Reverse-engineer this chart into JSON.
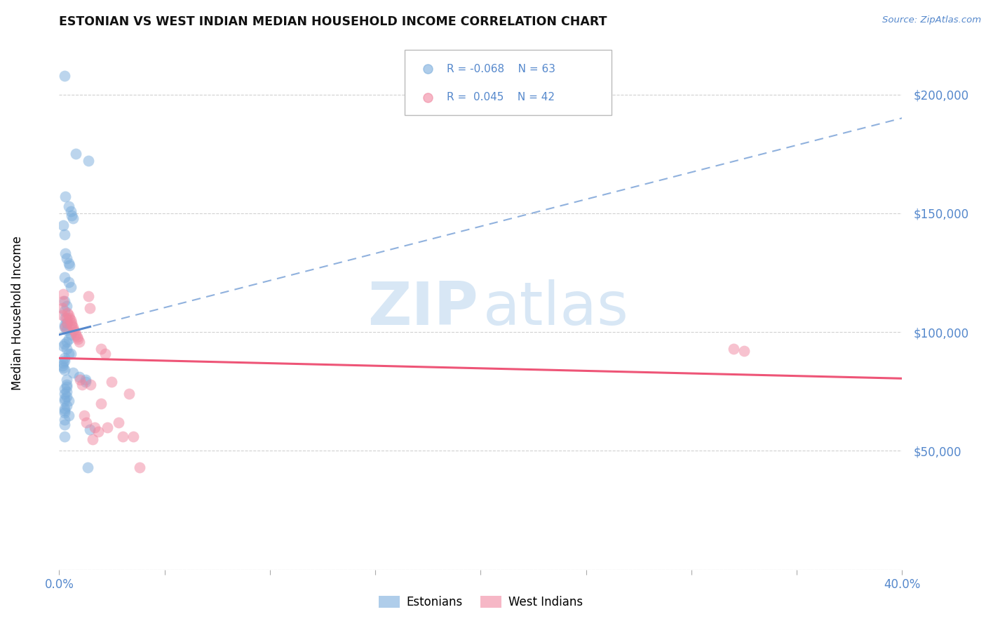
{
  "title": "ESTONIAN VS WEST INDIAN MEDIAN HOUSEHOLD INCOME CORRELATION CHART",
  "source": "Source: ZipAtlas.com",
  "ylabel": "Median Household Income",
  "watermark_zip": "ZIP",
  "watermark_atlas": "atlas",
  "legend_estonian_R": "R = -0.068",
  "legend_estonian_N": "N = 63",
  "legend_west_indian_R": "R =  0.045",
  "legend_west_indian_N": "N = 42",
  "estonian_label": "Estonians",
  "west_indian_label": "West Indians",
  "ylim": [
    0,
    220000
  ],
  "xlim": [
    0.0,
    0.4
  ],
  "blue_color": "#7aaddc",
  "pink_color": "#f087a0",
  "blue_line_color": "#5588cc",
  "pink_line_color": "#ee5577",
  "axis_label_color": "#5588cc",
  "grid_color": "#cccccc",
  "title_color": "#111111",
  "estonian_x": [
    0.0025,
    0.008,
    0.014,
    0.003,
    0.0045,
    0.0055,
    0.006,
    0.0065,
    0.002,
    0.0025,
    0.003,
    0.0035,
    0.0045,
    0.005,
    0.0025,
    0.0045,
    0.0055,
    0.0025,
    0.0035,
    0.0025,
    0.003,
    0.0035,
    0.0025,
    0.0025,
    0.0035,
    0.0055,
    0.0045,
    0.0035,
    0.0025,
    0.002,
    0.0035,
    0.0045,
    0.0055,
    0.0025,
    0.0025,
    0.002,
    0.0015,
    0.002,
    0.0025,
    0.0065,
    0.0095,
    0.0035,
    0.0125,
    0.0125,
    0.0035,
    0.0035,
    0.0025,
    0.0035,
    0.0025,
    0.0035,
    0.0025,
    0.0045,
    0.0025,
    0.0035,
    0.0025,
    0.0025,
    0.0025,
    0.0045,
    0.0025,
    0.0025,
    0.0145,
    0.0025,
    0.0135
  ],
  "estonian_y": [
    208000,
    175000,
    172000,
    157000,
    153000,
    151000,
    149000,
    148000,
    145000,
    141000,
    133000,
    131000,
    129000,
    128000,
    123000,
    121000,
    119000,
    113000,
    111000,
    109000,
    106000,
    104000,
    103000,
    102000,
    101000,
    99000,
    97000,
    96000,
    95000,
    94000,
    93000,
    91000,
    91000,
    89000,
    88000,
    87000,
    86000,
    85000,
    84000,
    83000,
    81000,
    80000,
    80000,
    79000,
    78000,
    77000,
    76000,
    75000,
    74000,
    73000,
    72000,
    71000,
    71000,
    69000,
    68000,
    67000,
    66000,
    65000,
    63000,
    61000,
    59000,
    56000,
    43000
  ],
  "west_indian_x": [
    0.0015,
    0.0015,
    0.002,
    0.002,
    0.003,
    0.0035,
    0.004,
    0.004,
    0.0045,
    0.005,
    0.0055,
    0.006,
    0.006,
    0.0065,
    0.007,
    0.0075,
    0.008,
    0.0085,
    0.009,
    0.0095,
    0.01,
    0.011,
    0.012,
    0.013,
    0.014,
    0.0145,
    0.015,
    0.016,
    0.017,
    0.0185,
    0.02,
    0.022,
    0.025,
    0.028,
    0.03,
    0.033,
    0.035,
    0.038,
    0.02,
    0.023,
    0.32,
    0.325
  ],
  "west_indian_y": [
    107000,
    110000,
    113000,
    116000,
    102000,
    106000,
    104000,
    108000,
    107000,
    106000,
    105000,
    104000,
    103000,
    102000,
    101000,
    100000,
    99000,
    98000,
    97000,
    96000,
    80000,
    78000,
    65000,
    62000,
    115000,
    110000,
    78000,
    55000,
    60000,
    58000,
    93000,
    91000,
    79000,
    62000,
    56000,
    74000,
    56000,
    43000,
    70000,
    60000,
    93000,
    92000
  ]
}
